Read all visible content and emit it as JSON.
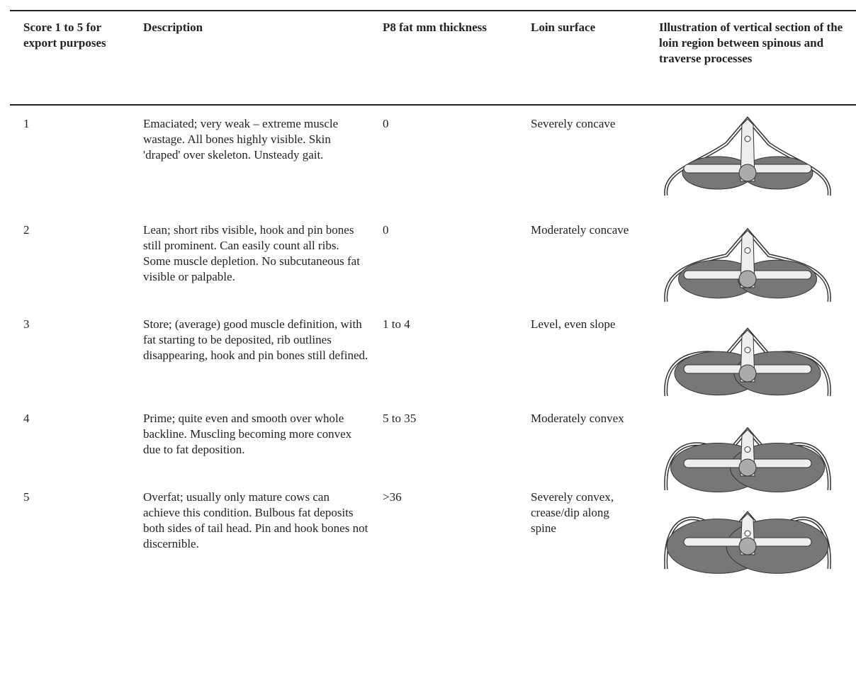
{
  "table": {
    "header": [
      "Score 1 to 5 for export purposes",
      "Description",
      "P8 fat mm thickness",
      "Loin surface",
      "Illustration of vertical section of the loin region between spinous and traverse processes"
    ],
    "rows": [
      [
        "1",
        "Emaciated; very weak – extreme muscle wastage. All bones highly visible. Skin 'draped' over skeleton. Unsteady gait.",
        "0",
        "Severely concave"
      ],
      [
        "2",
        "Lean; short ribs visible, hook and pin bones still prominent. Can easily count all ribs. Some muscle depletion. No subcutaneous fat visible or palpable.",
        "0",
        "Moderately concave"
      ],
      [
        "3",
        "Store; (average) good muscle definition, with fat starting to be deposited, rib outlines disappearing, hook and pin bones still defined.",
        "1 to 4",
        "Level, even slope"
      ],
      [
        "4",
        "Prime; quite even and smooth over whole backline. Muscling becoming more convex due to fat deposition.",
        "5 to 35",
        "Moderately convex"
      ],
      [
        "5",
        "Overfat; usually only mature cows can achieve this condition. Bulbous fat deposits both sides of tail head. Pin and hook bones not discernible.",
        ">36",
        "Severely convex, crease/dip along spine"
      ]
    ]
  }
}
